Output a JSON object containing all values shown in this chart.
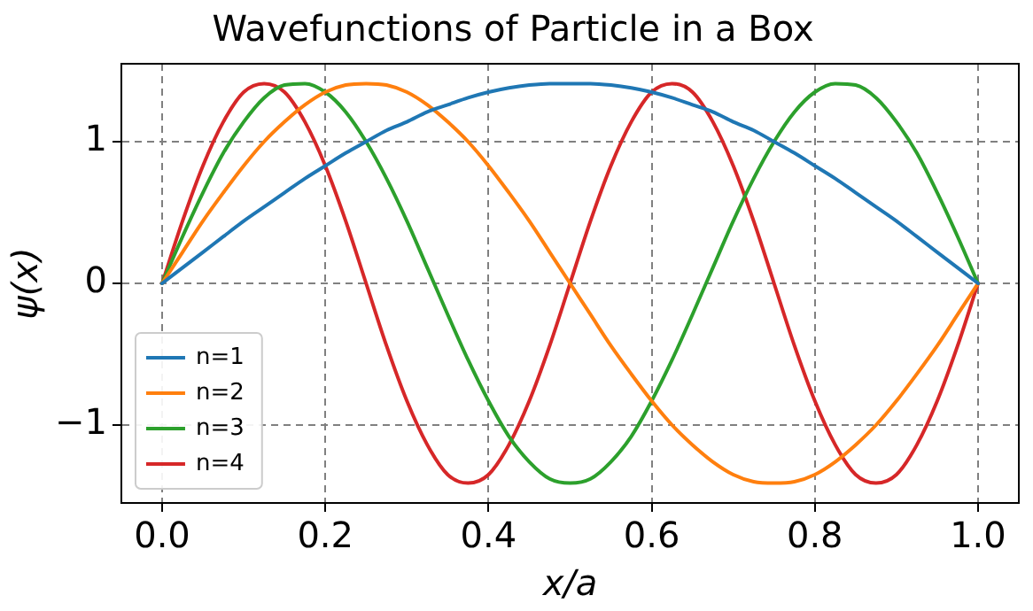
{
  "chart_data": {
    "type": "line",
    "title": "Wavefunctions of Particle in a Box",
    "xlabel": "x/a",
    "ylabel": "ψ(x)",
    "x": [
      0,
      0.025,
      0.05,
      0.075,
      0.1,
      0.125,
      0.15,
      0.175,
      0.2,
      0.225,
      0.25,
      0.275,
      0.3,
      0.325,
      0.35,
      0.375,
      0.4,
      0.425,
      0.45,
      0.475,
      0.5,
      0.525,
      0.55,
      0.575,
      0.6,
      0.625,
      0.65,
      0.675,
      0.7,
      0.725,
      0.75,
      0.775,
      0.8,
      0.825,
      0.85,
      0.875,
      0.9,
      0.925,
      0.95,
      0.975,
      1
    ],
    "series": [
      {
        "name": "n=1",
        "color": "#1f77b4",
        "values": [
          0,
          0.11,
          0.22,
          0.33,
          0.44,
          0.54,
          0.64,
          0.74,
          0.83,
          0.92,
          1.0,
          1.08,
          1.14,
          1.21,
          1.26,
          1.31,
          1.35,
          1.38,
          1.4,
          1.41,
          1.41,
          1.41,
          1.4,
          1.38,
          1.35,
          1.31,
          1.26,
          1.21,
          1.14,
          1.08,
          1.0,
          0.92,
          0.83,
          0.74,
          0.64,
          0.54,
          0.44,
          0.33,
          0.22,
          0.11,
          0
        ]
      },
      {
        "name": "n=2",
        "color": "#ff7f0e",
        "values": [
          0,
          0.22,
          0.44,
          0.64,
          0.83,
          1.0,
          1.14,
          1.26,
          1.35,
          1.4,
          1.41,
          1.4,
          1.35,
          1.26,
          1.14,
          1.0,
          0.83,
          0.64,
          0.44,
          0.22,
          0,
          -0.22,
          -0.44,
          -0.64,
          -0.83,
          -1.0,
          -1.14,
          -1.26,
          -1.35,
          -1.4,
          -1.41,
          -1.4,
          -1.35,
          -1.26,
          -1.14,
          -1.0,
          -0.83,
          -0.64,
          -0.44,
          -0.22,
          0
        ]
      },
      {
        "name": "n=3",
        "color": "#2ca02c",
        "values": [
          0,
          0.33,
          0.64,
          0.92,
          1.14,
          1.31,
          1.4,
          1.41,
          1.35,
          1.21,
          1.0,
          0.74,
          0.44,
          0.11,
          -0.22,
          -0.54,
          -0.83,
          -1.08,
          -1.26,
          -1.38,
          -1.41,
          -1.38,
          -1.26,
          -1.08,
          -0.83,
          -0.54,
          -0.22,
          0.11,
          0.44,
          0.74,
          1.0,
          1.21,
          1.35,
          1.41,
          1.4,
          1.31,
          1.14,
          0.92,
          0.64,
          0.33,
          0
        ]
      },
      {
        "name": "n=4",
        "color": "#d62728",
        "values": [
          0,
          0.44,
          0.83,
          1.14,
          1.35,
          1.41,
          1.35,
          1.14,
          0.83,
          0.44,
          0,
          -0.44,
          -0.83,
          -1.14,
          -1.35,
          -1.41,
          -1.35,
          -1.14,
          -0.83,
          -0.44,
          0,
          0.44,
          0.83,
          1.14,
          1.35,
          1.41,
          1.35,
          1.14,
          0.83,
          0.44,
          0,
          -0.44,
          -0.83,
          -1.14,
          -1.35,
          -1.41,
          -1.35,
          -1.14,
          -0.83,
          -0.44,
          0
        ]
      }
    ],
    "xlim": [
      -0.05,
      1.05
    ],
    "xticks": [
      {
        "value": 0,
        "label": "0.0"
      },
      {
        "value": 0.2,
        "label": "0.2"
      },
      {
        "value": 0.4,
        "label": "0.4"
      },
      {
        "value": 0.6,
        "label": "0.6"
      },
      {
        "value": 0.8,
        "label": "0.8"
      },
      {
        "value": 1,
        "label": "1.0"
      }
    ],
    "ylim": [
      -1.55,
      1.55
    ],
    "yticks": [
      {
        "value": -1,
        "label": "−1"
      },
      0,
      1
    ],
    "grid": true,
    "legend": "bottom left",
    "marker": "none",
    "line_style": "solid"
  }
}
